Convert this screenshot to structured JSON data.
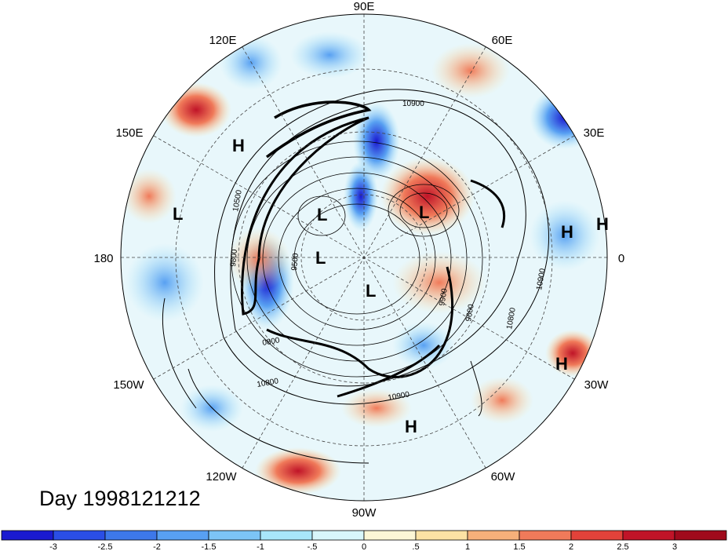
{
  "title": "Day 1998121212",
  "longitude_labels": {
    "lon_90e": "90E",
    "lon_60e": "60E",
    "lon_120e": "120E",
    "lon_150e": "150E",
    "lon_30e": "30E",
    "lon_180": "180",
    "lon_0": "0",
    "lon_150w": "150W",
    "lon_30w": "30W",
    "lon_120w": "120W",
    "lon_60w": "60W",
    "lon_90w": "90W"
  },
  "pressure_centers": {
    "h_east_asia": "H",
    "l_pacific": "L",
    "l_siberia": "L",
    "l_arctic": "L",
    "l_greenland": "L",
    "l_europe": "L",
    "h_atlantic_east": "H",
    "h_edge": "H",
    "h_atlantic": "H",
    "h_caribbean": "H"
  },
  "contour_labels": {
    "c_10900_top": "10900",
    "c_10900_right": "10900",
    "c_10800_right": "10800",
    "c_10800_bottom": "10800",
    "c_10900_bottom": "10900",
    "c_9500": "9500",
    "c_9900": "9900",
    "c_9600": "9600",
    "c_0800_left": "0800",
    "c_10500_left": "10500",
    "c_9800_left": "9800"
  },
  "colorbar": {
    "labels": [
      "-3",
      "-2.5",
      "-2",
      "-1.5",
      "-1",
      "-.5",
      "0",
      ".5",
      "1",
      "1.5",
      "2",
      "2.5",
      "3"
    ],
    "colors": [
      "#1a1ad0",
      "#2a4ee6",
      "#3d78ea",
      "#58a0f2",
      "#7cc4f6",
      "#a8e6fa",
      "#d8f6fb",
      "#fcf6d6",
      "#fce2a4",
      "#f6b07a",
      "#f07a5a",
      "#e2423a",
      "#c01428",
      "#a00a1c"
    ]
  }
}
